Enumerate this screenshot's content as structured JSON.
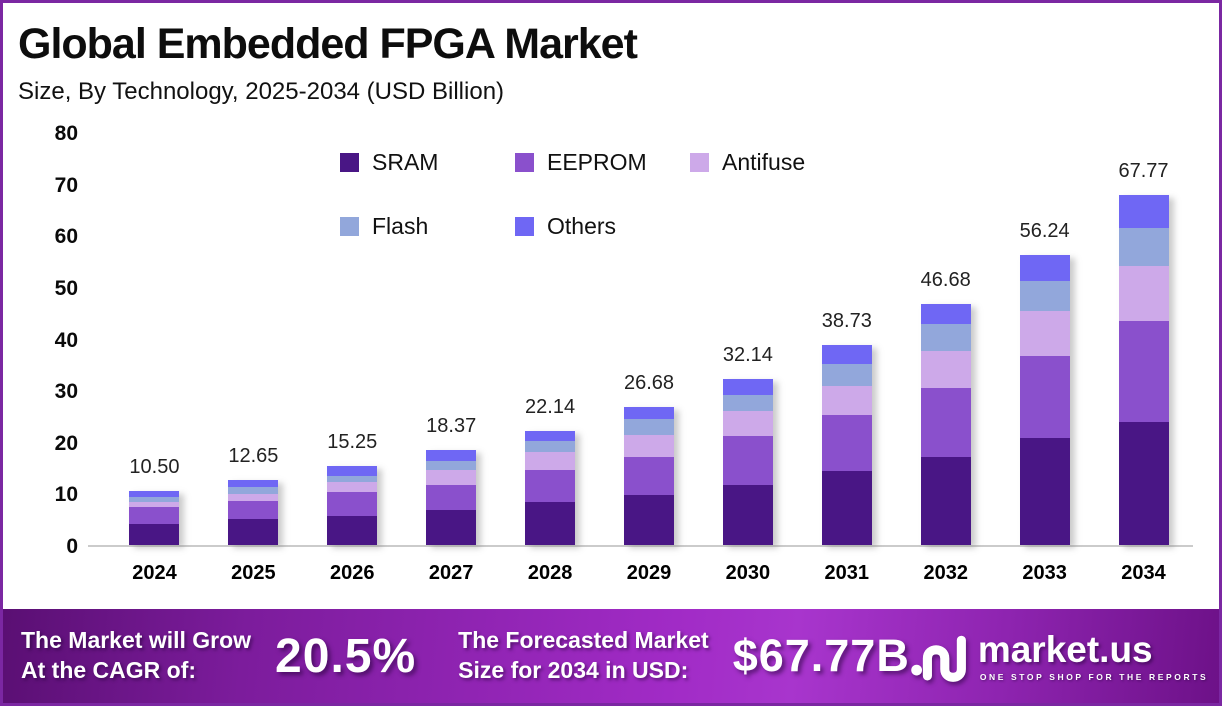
{
  "header": {
    "title": "Global Embedded FPGA Market",
    "subtitle": "Size, By Technology, 2025-2034 (USD Billion)"
  },
  "chart_data": {
    "type": "bar",
    "stacked": true,
    "title": "Global Embedded FPGA Market Size, By Technology, 2025-2034 (USD Billion)",
    "categories": [
      "2024",
      "2025",
      "2026",
      "2027",
      "2028",
      "2029",
      "2030",
      "2031",
      "2032",
      "2033",
      "2034"
    ],
    "series": [
      {
        "name": "SRAM",
        "color": "#491685",
        "values": [
          4.15,
          4.95,
          5.7,
          6.7,
          8.3,
          9.6,
          11.7,
          14.35,
          17.1,
          20.8,
          23.8
        ]
      },
      {
        "name": "EEPROM",
        "color": "#8a50cc",
        "values": [
          3.25,
          3.6,
          4.5,
          4.95,
          6.2,
          7.5,
          9.4,
          10.85,
          13.4,
          15.9,
          19.6
        ]
      },
      {
        "name": "Antifuse",
        "color": "#cda9e9",
        "values": [
          0.95,
          1.35,
          1.95,
          2.9,
          3.55,
          4.3,
          4.9,
          5.6,
          7.1,
          8.7,
          10.6
        ]
      },
      {
        "name": "Flash",
        "color": "#92a7db",
        "values": [
          1.0,
          1.25,
          1.3,
          1.7,
          2.15,
          3.1,
          3.1,
          4.3,
          5.2,
          5.8,
          7.4
        ]
      },
      {
        "name": "Others",
        "color": "#6f67f4",
        "values": [
          1.15,
          1.5,
          1.8,
          2.12,
          1.94,
          2.18,
          3.04,
          3.63,
          3.88,
          5.04,
          6.37
        ]
      }
    ],
    "totals": [
      10.5,
      12.65,
      15.25,
      18.37,
      22.14,
      26.68,
      32.14,
      38.73,
      46.68,
      56.24,
      67.77
    ],
    "total_labels": [
      "10.50",
      "12.65",
      "15.25",
      "18.37",
      "22.14",
      "26.68",
      "32.14",
      "38.73",
      "46.68",
      "56.24",
      "67.77"
    ],
    "xlabel": "",
    "ylabel": "",
    "ylim": [
      0,
      80
    ],
    "yticks": [
      0,
      10,
      20,
      30,
      40,
      50,
      60,
      70,
      80
    ],
    "grid": false,
    "legend_position": "top-center"
  },
  "banner": {
    "cagr": {
      "line1": "The Market will Grow",
      "line2": "At the CAGR of:",
      "value": "20.5%"
    },
    "forecast": {
      "line1": "The Forecasted Market",
      "line2": "Size for 2034 in USD:",
      "value": "$67.77B"
    },
    "logo": {
      "name": "market.us",
      "tagline": "ONE STOP SHOP FOR THE REPORTS"
    }
  },
  "colors": {
    "frame_border": "#7b27a2",
    "baseline": "#cbcbcb",
    "banner_gradient_left": "#5a0f73",
    "banner_gradient_mid": "#a835cd",
    "banner_gradient_right": "#6d1188",
    "text_dark": "#111111",
    "text_white": "#ffffff"
  }
}
